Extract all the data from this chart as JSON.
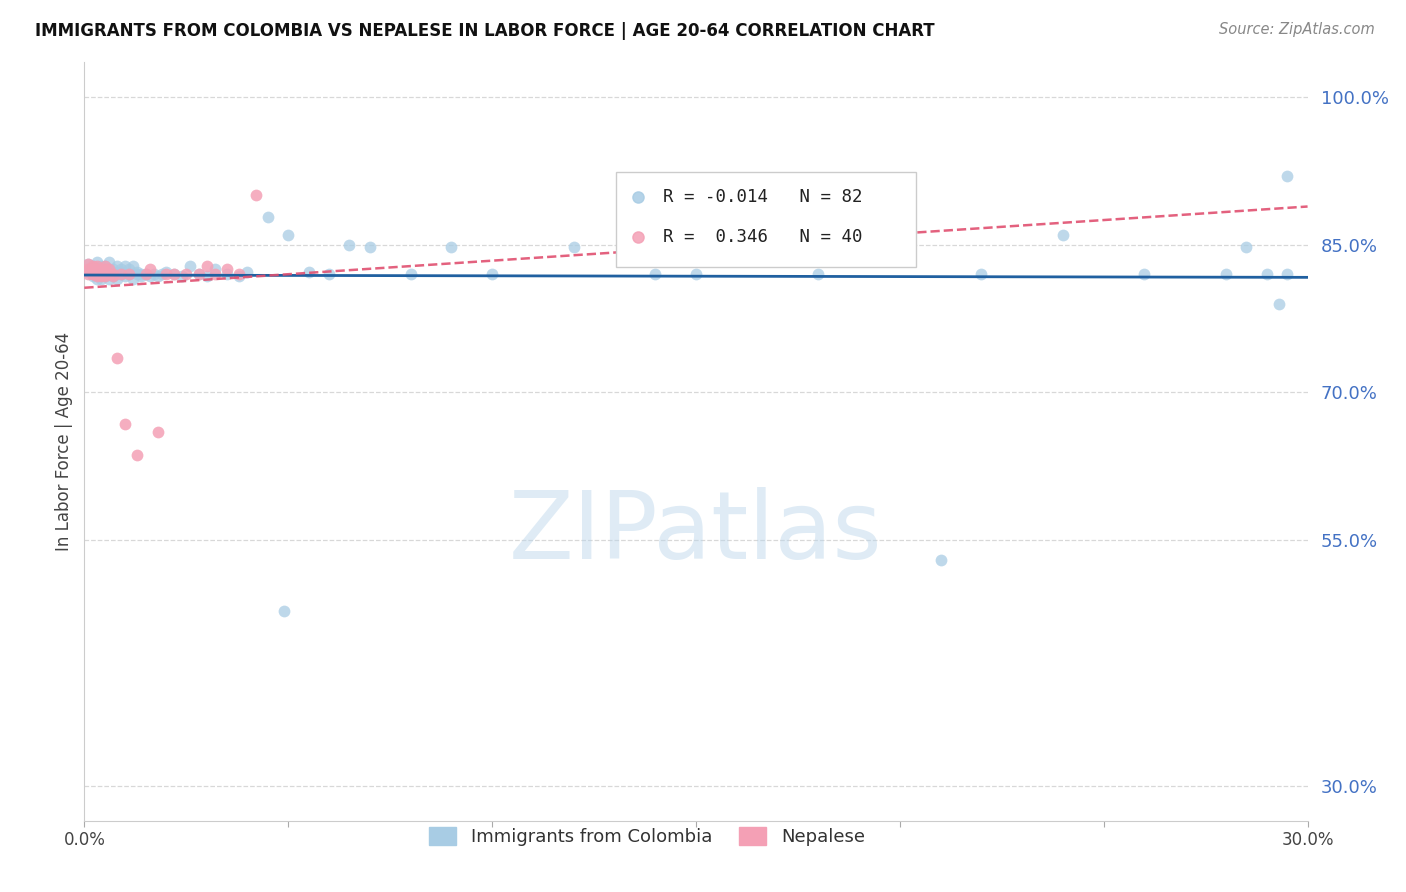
{
  "title": "IMMIGRANTS FROM COLOMBIA VS NEPALESE IN LABOR FORCE | AGE 20-64 CORRELATION CHART",
  "source": "Source: ZipAtlas.com",
  "ylabel": "In Labor Force | Age 20-64",
  "ytick_labels": [
    "30.0%",
    "55.0%",
    "70.0%",
    "85.0%",
    "100.0%"
  ],
  "ytick_vals": [
    0.3,
    0.55,
    0.7,
    0.85,
    1.0
  ],
  "watermark": "ZIPatlas",
  "colombia_color": "#a8cce4",
  "nepal_color": "#f4a0b5",
  "colombia_line_color": "#2060a0",
  "nepal_line_color": "#e05070",
  "background_color": "#ffffff",
  "grid_color": "#d8d8d8",
  "title_color": "#111111",
  "ytick_color": "#4472c4",
  "source_color": "#888888",
  "colombia_x": [
    0.001,
    0.001,
    0.002,
    0.002,
    0.002,
    0.003,
    0.003,
    0.003,
    0.003,
    0.004,
    0.004,
    0.004,
    0.004,
    0.005,
    0.005,
    0.005,
    0.005,
    0.006,
    0.006,
    0.006,
    0.006,
    0.007,
    0.007,
    0.007,
    0.007,
    0.008,
    0.008,
    0.008,
    0.009,
    0.009,
    0.009,
    0.01,
    0.01,
    0.011,
    0.011,
    0.012,
    0.012,
    0.013,
    0.013,
    0.014,
    0.014,
    0.015,
    0.016,
    0.017,
    0.018,
    0.019,
    0.02,
    0.022,
    0.024,
    0.026,
    0.028,
    0.03,
    0.032,
    0.035,
    0.038,
    0.04,
    0.045,
    0.05,
    0.055,
    0.06,
    0.065,
    0.07,
    0.08,
    0.09,
    0.1,
    0.12,
    0.14,
    0.16,
    0.18,
    0.2,
    0.22,
    0.24,
    0.26,
    0.28,
    0.285,
    0.29,
    0.293,
    0.295,
    0.049,
    0.15,
    0.21,
    0.295
  ],
  "colombia_y": [
    0.822,
    0.83,
    0.82,
    0.828,
    0.818,
    0.825,
    0.82,
    0.815,
    0.832,
    0.82,
    0.828,
    0.815,
    0.825,
    0.818,
    0.825,
    0.82,
    0.828,
    0.82,
    0.832,
    0.815,
    0.825,
    0.82,
    0.822,
    0.818,
    0.825,
    0.82,
    0.828,
    0.815,
    0.825,
    0.82,
    0.822,
    0.828,
    0.818,
    0.82,
    0.825,
    0.815,
    0.828,
    0.82,
    0.822,
    0.82,
    0.818,
    0.82,
    0.818,
    0.82,
    0.818,
    0.82,
    0.822,
    0.82,
    0.818,
    0.828,
    0.82,
    0.818,
    0.825,
    0.82,
    0.818,
    0.822,
    0.878,
    0.86,
    0.822,
    0.82,
    0.85,
    0.848,
    0.82,
    0.848,
    0.82,
    0.848,
    0.82,
    0.862,
    0.82,
    0.848,
    0.82,
    0.86,
    0.82,
    0.82,
    0.848,
    0.82,
    0.79,
    0.82,
    0.478,
    0.82,
    0.53,
    0.92
  ],
  "nepal_x": [
    0.001,
    0.001,
    0.001,
    0.002,
    0.002,
    0.002,
    0.002,
    0.003,
    0.003,
    0.003,
    0.003,
    0.004,
    0.004,
    0.004,
    0.004,
    0.005,
    0.005,
    0.005,
    0.005,
    0.006,
    0.006,
    0.007,
    0.007,
    0.008,
    0.009,
    0.01,
    0.011,
    0.013,
    0.015,
    0.016,
    0.018,
    0.02,
    0.022,
    0.025,
    0.028,
    0.03,
    0.032,
    0.035,
    0.038,
    0.042
  ],
  "nepal_y": [
    0.82,
    0.83,
    0.825,
    0.82,
    0.828,
    0.825,
    0.82,
    0.818,
    0.825,
    0.82,
    0.828,
    0.82,
    0.825,
    0.818,
    0.82,
    0.825,
    0.82,
    0.818,
    0.828,
    0.82,
    0.825,
    0.82,
    0.818,
    0.735,
    0.82,
    0.668,
    0.82,
    0.636,
    0.82,
    0.825,
    0.66,
    0.82,
    0.82,
    0.82,
    0.82,
    0.828,
    0.82,
    0.825,
    0.82,
    0.9
  ],
  "xmin": 0.0,
  "xmax": 0.3,
  "ymin": 0.265,
  "ymax": 1.035
}
